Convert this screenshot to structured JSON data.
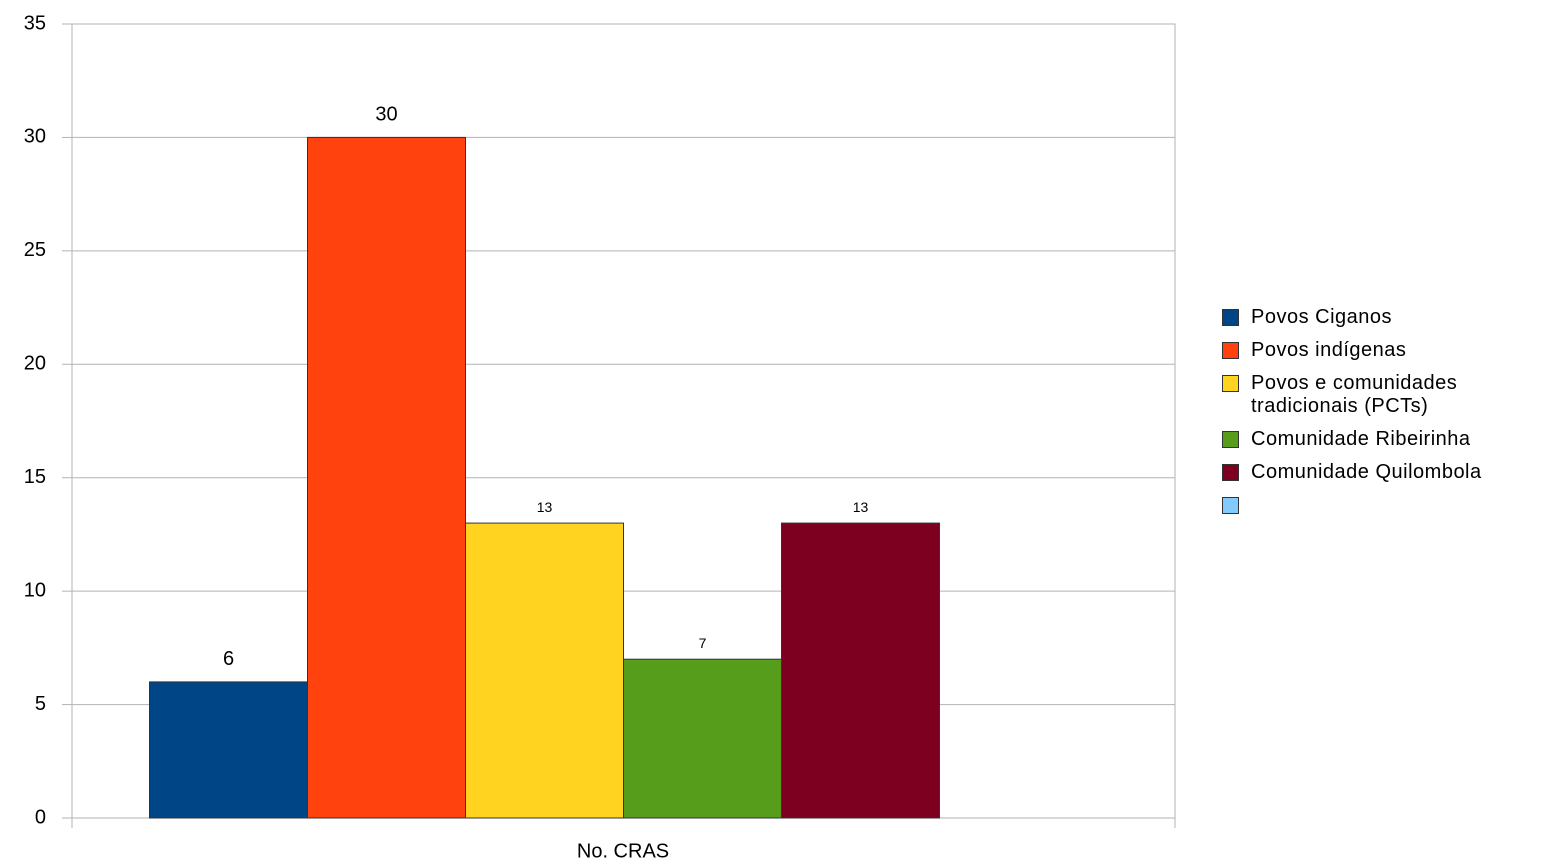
{
  "chart_data": {
    "type": "bar",
    "categories": [
      "No. CRAS"
    ],
    "series": [
      {
        "name": "Povos Ciganos",
        "color": "#004586",
        "values": [
          6
        ]
      },
      {
        "name": "Povos indígenas",
        "color": "#ff420e",
        "values": [
          30
        ]
      },
      {
        "name": "Povos e comunidades tradicionais (PCTs)",
        "color": "#ffd320",
        "values": [
          13
        ]
      },
      {
        "name": "Comunidade Ribeirinha",
        "color": "#579d1c",
        "values": [
          7
        ]
      },
      {
        "name": "Comunidade Quilombola",
        "color": "#7e0021",
        "values": [
          13
        ]
      },
      {
        "name": null,
        "color": "#83caff",
        "values": [
          null
        ]
      }
    ],
    "ylim": [
      0,
      35
    ],
    "yticks": [
      0,
      5,
      10,
      15,
      20,
      25,
      30,
      35
    ],
    "grid": true,
    "legend": "right"
  }
}
